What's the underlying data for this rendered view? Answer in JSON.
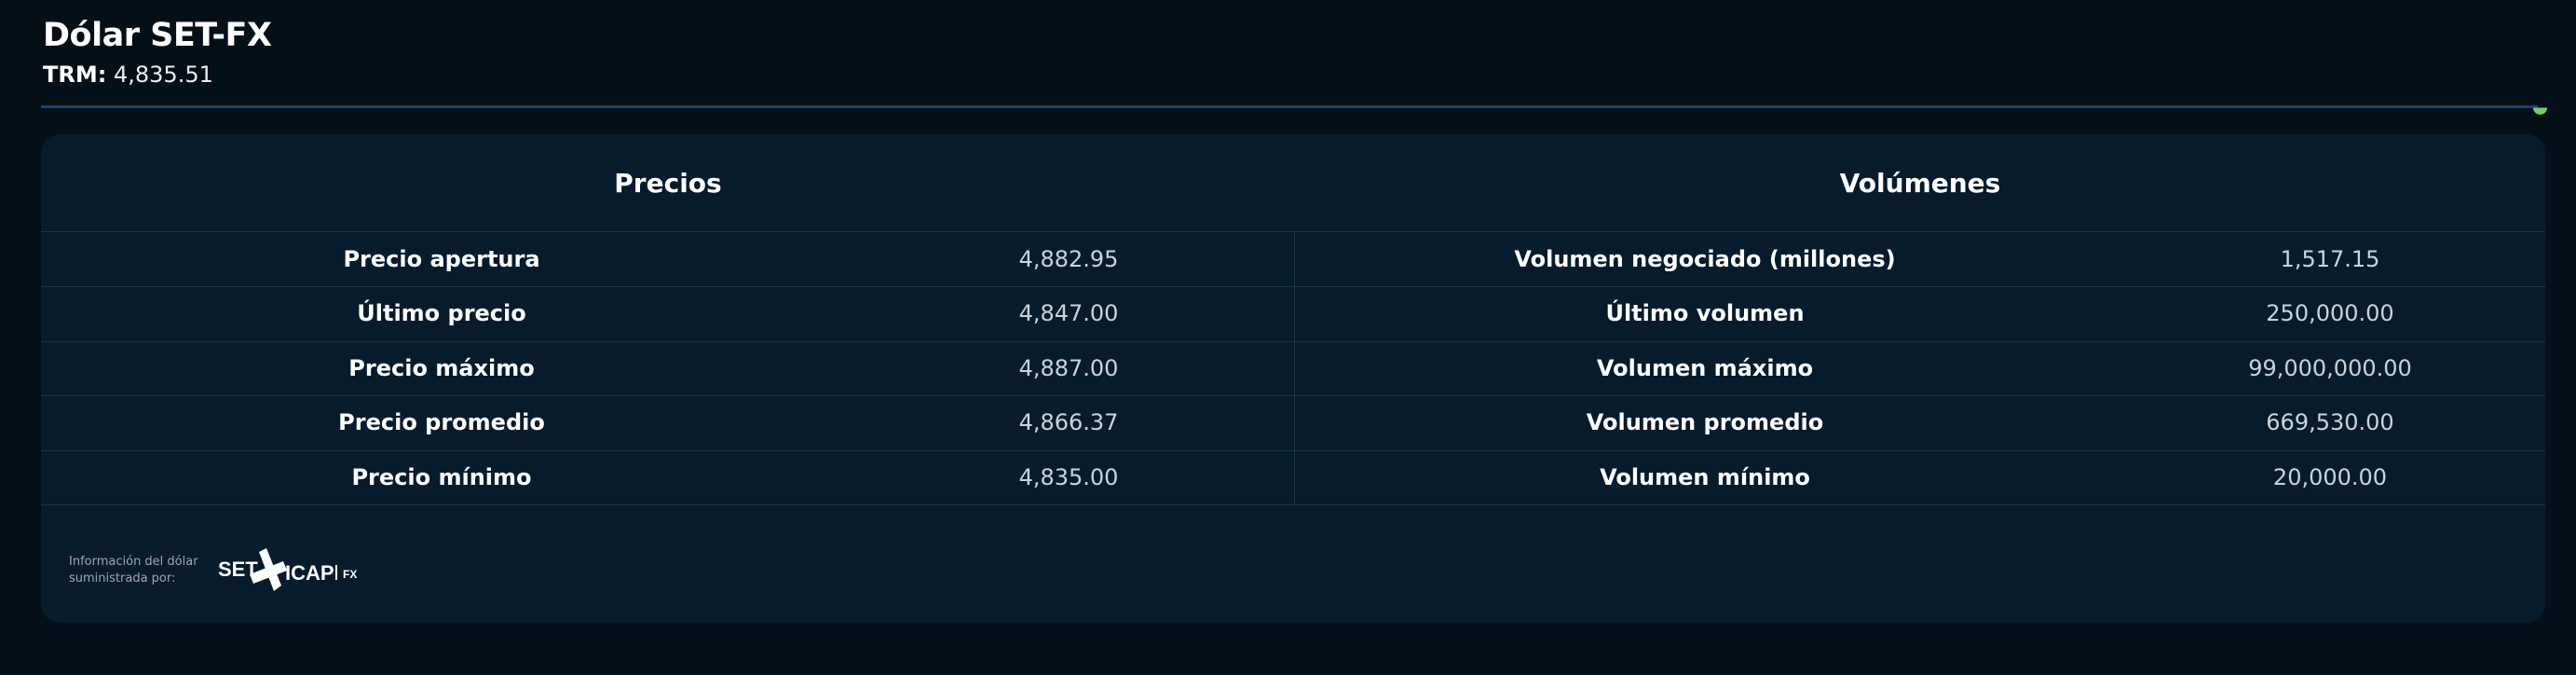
{
  "header": {
    "title": "Dólar SET-FX",
    "trm_label": "TRM:",
    "trm_value": "4,835.51"
  },
  "status_color": "#6bd45a",
  "table": {
    "precios": {
      "heading": "Precios",
      "rows": [
        {
          "label": "Precio apertura",
          "value": "4,882.95"
        },
        {
          "label": "Último precio",
          "value": "4,847.00"
        },
        {
          "label": "Precio máximo",
          "value": "4,887.00"
        },
        {
          "label": "Precio promedio",
          "value": "4,866.37"
        },
        {
          "label": "Precio mínimo",
          "value": "4,835.00"
        }
      ]
    },
    "volumenes": {
      "heading": "Volúmenes",
      "rows": [
        {
          "label": "Volumen negociado (millones)",
          "value": "1,517.15"
        },
        {
          "label": "Último volumen",
          "value": "250,000.00"
        },
        {
          "label": "Volumen máximo",
          "value": "99,000,000.00"
        },
        {
          "label": "Volumen promedio",
          "value": "669,530.00"
        },
        {
          "label": "Volumen mínimo",
          "value": "20,000.00"
        }
      ]
    }
  },
  "footer": {
    "line1": "Información del dólar",
    "line2": "suministrada por:",
    "logo_text": "SET ICAP | FX"
  }
}
